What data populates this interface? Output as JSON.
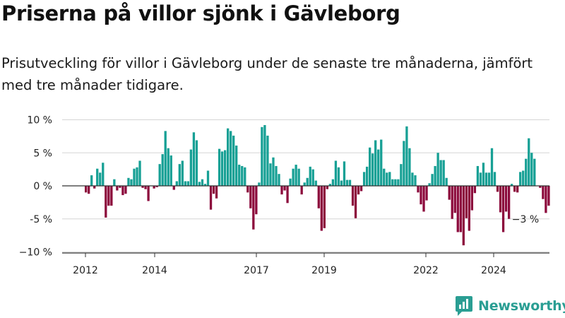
{
  "header": {
    "title": "Priserna på villor sjönk i Gävleborg",
    "subtitle": "Prisutveckling för villor i Gävleborg under de senaste tre månaderna, jämfört med tre månader tidigare."
  },
  "logo": {
    "text": "Newsworthy",
    "icon": "newsworthy-logo-icon",
    "color": "#2a9e93"
  },
  "colors": {
    "positive": "#17a095",
    "negative": "#8c0a3c",
    "grid": "#d5d5d5",
    "axis": "#333333"
  },
  "chart_data": {
    "type": "bar",
    "title": "",
    "xlabel": "",
    "ylabel": "",
    "unit": "%",
    "ylim": [
      -10,
      10
    ],
    "yticks": [
      {
        "value": 10,
        "label": "10 %"
      },
      {
        "value": 5,
        "label": "5 %"
      },
      {
        "value": 0,
        "label": "0 %"
      },
      {
        "value": -5,
        "label": "-5 %"
      },
      {
        "value": -10,
        "label": "−10 %"
      }
    ],
    "xticks": [
      "2012",
      "2014",
      "2017",
      "2019",
      "2022",
      "2024"
    ],
    "grid": true,
    "annotation": {
      "text": "−3 %",
      "value": -3
    },
    "values": [
      -1,
      -1.2,
      1.6,
      -0.4,
      2.6,
      2,
      3.5,
      -4.8,
      -3,
      -3,
      1,
      -0.7,
      -0.3,
      -1.4,
      -1.2,
      1.2,
      1,
      2.6,
      2.8,
      3.8,
      -0.3,
      -0.5,
      -2.3,
      0,
      -0.4,
      -0.2,
      3.3,
      4.8,
      8.3,
      5.7,
      4.6,
      -0.6,
      0.7,
      3.3,
      3.8,
      0.7,
      0.7,
      5.5,
      8.1,
      6.9,
      0.6,
      1,
      0.3,
      2.3,
      -3.6,
      -1.2,
      -1.9,
      5.6,
      5.2,
      5.4,
      8.7,
      8.3,
      7.6,
      6.1,
      3.2,
      3,
      2.8,
      -1,
      -3.4,
      -6.6,
      -4.3,
      0.5,
      8.9,
      9.2,
      7.6,
      3.4,
      4.3,
      3,
      1.8,
      -1.3,
      -0.7,
      -2.6,
      1.1,
      2.6,
      3.2,
      2.6,
      -1.3,
      0.5,
      1.2,
      2.9,
      2.5,
      0.8,
      -3.4,
      -6.8,
      -6.4,
      -0.5,
      0.3,
      1,
      3.8,
      2.8,
      0.8,
      3.7,
      0.9,
      0.9,
      -3,
      -4.9,
      -1.3,
      -0.8,
      2.1,
      2.9,
      5.8,
      4.9,
      6.9,
      5.5,
      7,
      2.6,
      2,
      2.1,
      1,
      1,
      1,
      3.3,
      6.8,
      9,
      5.7,
      2,
      1.6,
      -1,
      -2.8,
      -3.9,
      -2.2,
      0.4,
      1.8,
      3,
      5,
      3.9,
      3.9,
      1.2,
      -2.1,
      -5,
      -4.1,
      -7,
      -7,
      -9,
      -4.9,
      -6.8,
      -3.7,
      -1.1,
      3,
      2,
      3.5,
      2,
      2,
      5.7,
      2.1,
      -0.9,
      -4,
      -7,
      -3.9,
      -5,
      0.3,
      -0.9,
      -1,
      2.1,
      2.3,
      4.1,
      7.2,
      5,
      4.1,
      0,
      -0.3,
      -2,
      -4.1,
      -3
    ]
  }
}
